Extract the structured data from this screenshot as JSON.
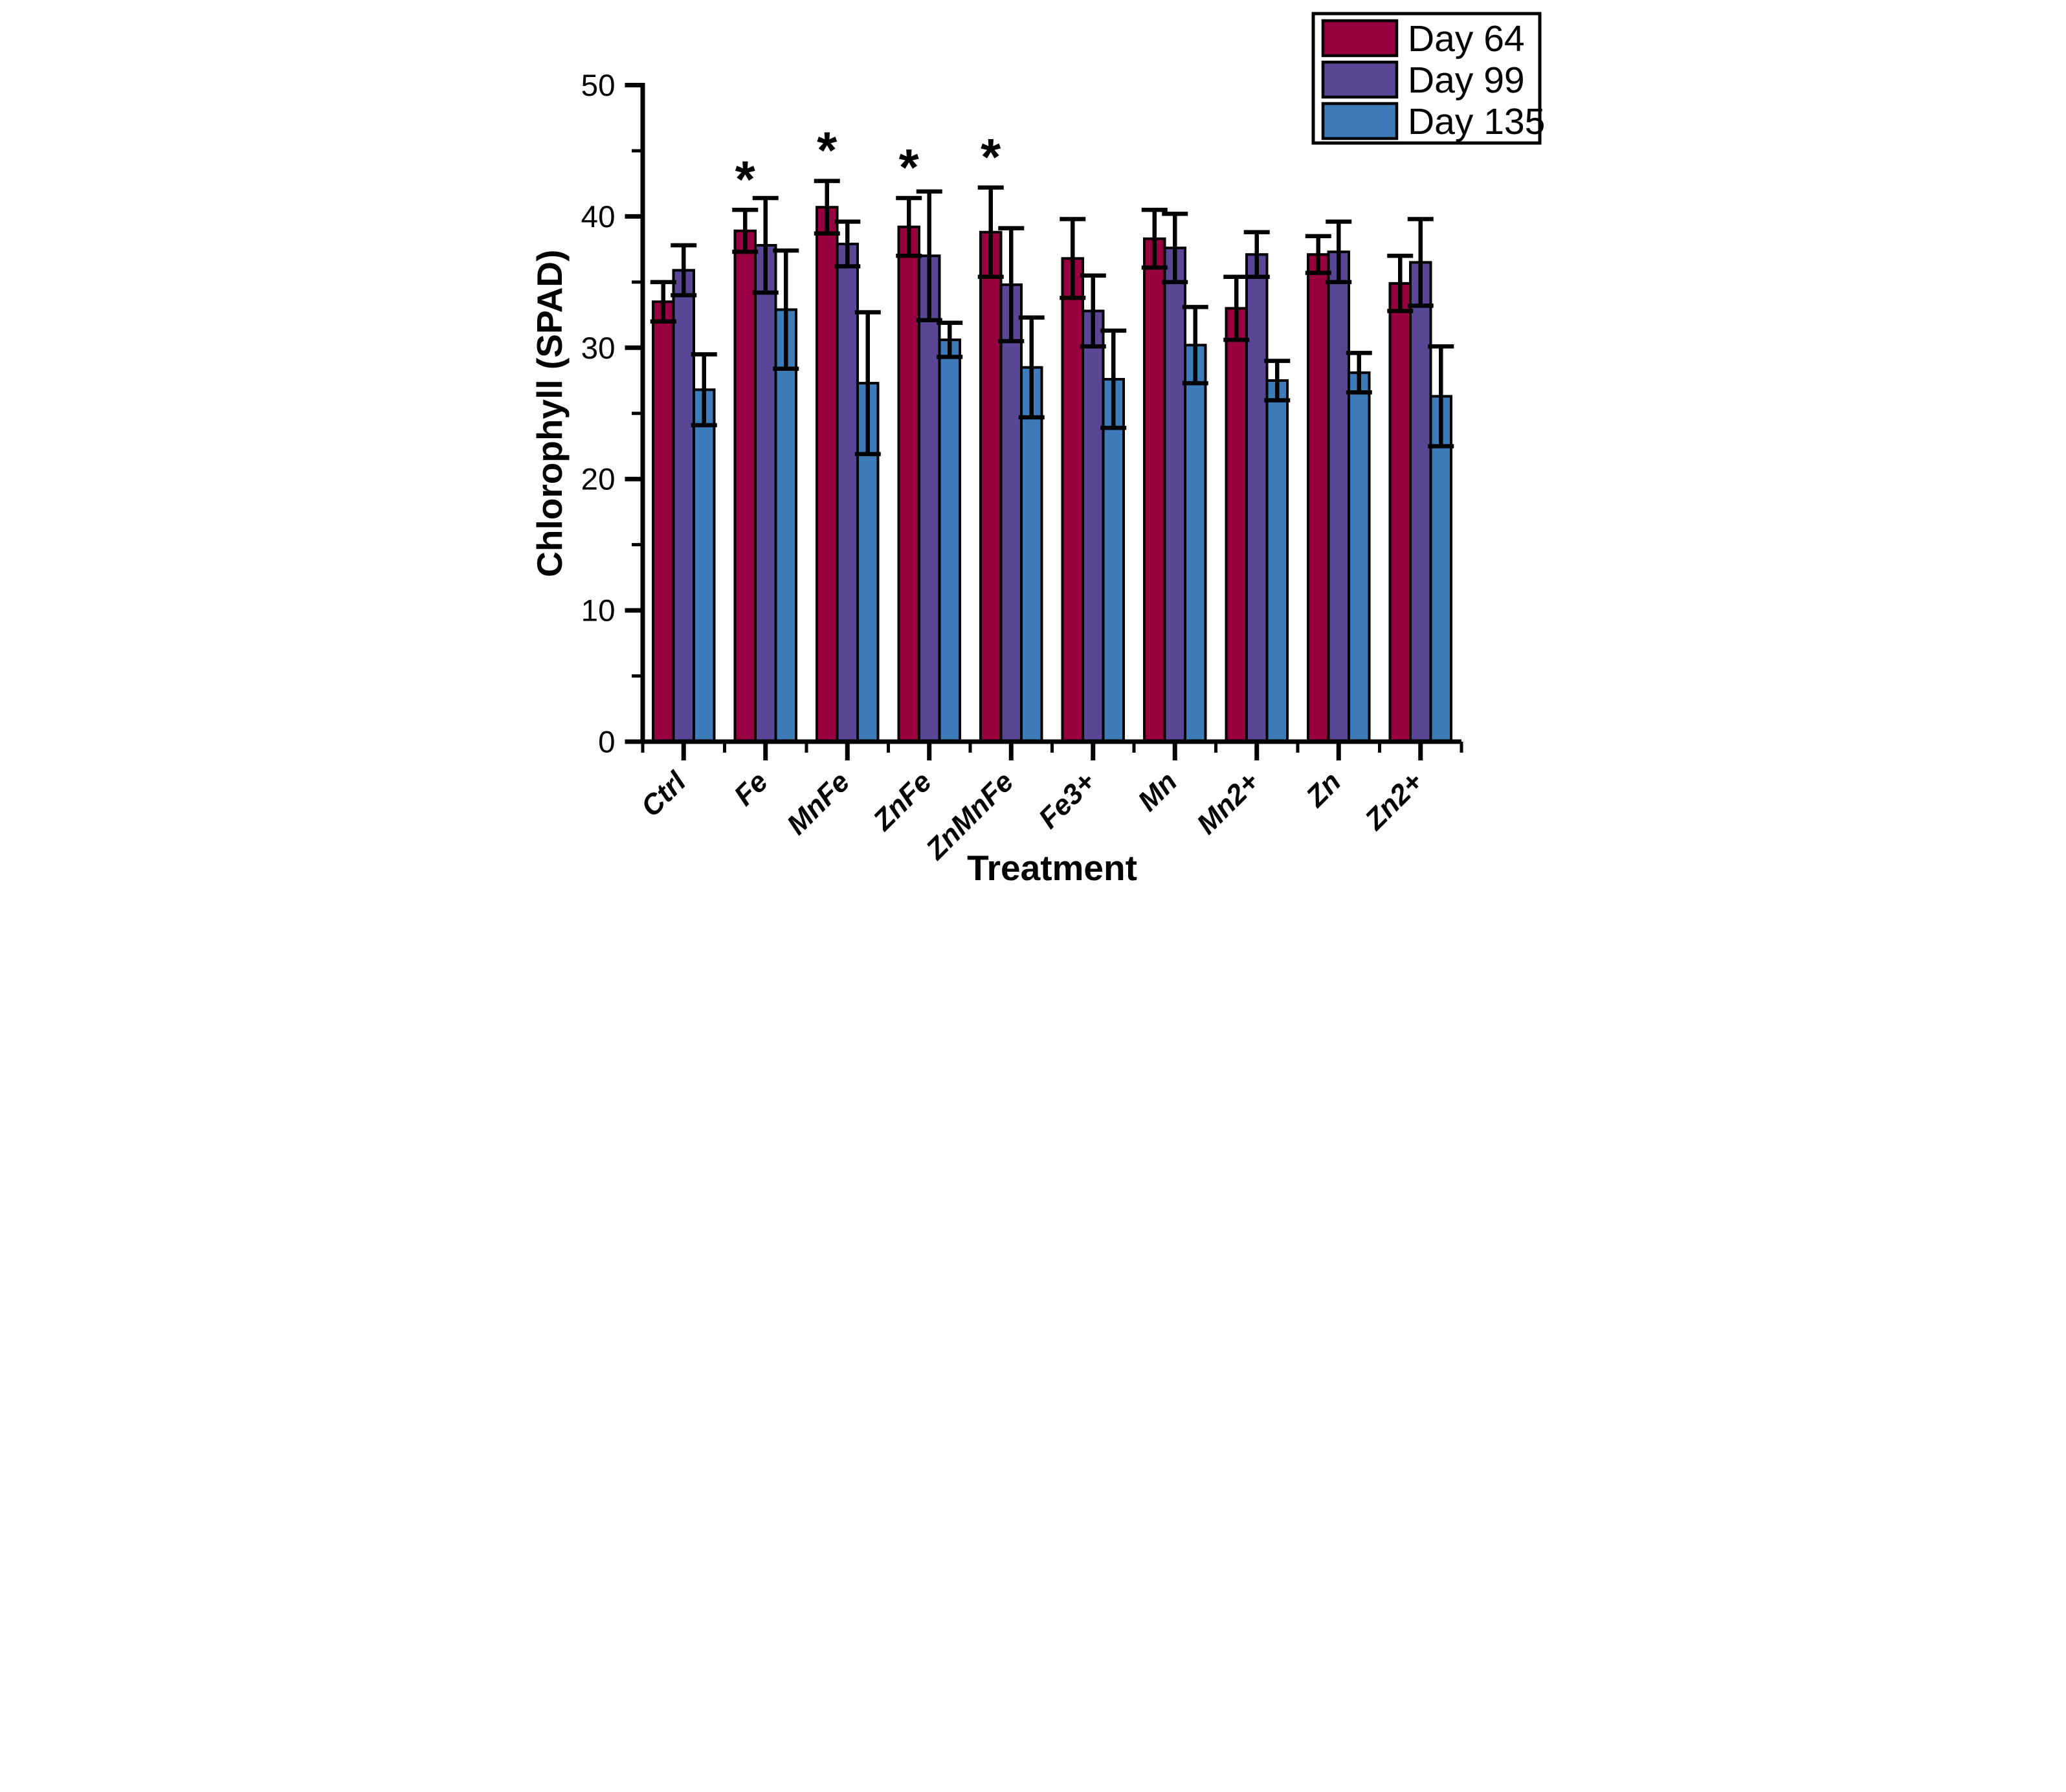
{
  "chart_data": {
    "type": "bar",
    "title": "",
    "xlabel": "Treatment",
    "ylabel": "Chlorophyll (SPAD)",
    "ylim": [
      0,
      50
    ],
    "yticks_major": [
      0,
      10,
      20,
      30,
      40,
      50
    ],
    "yticks_minor": [
      5,
      15,
      25,
      35,
      45
    ],
    "grid": false,
    "legend_position": "top-right",
    "categories": [
      "Ctrl",
      "Fe",
      "MnFe",
      "ZnFe",
      "ZnMnFe",
      "Fe3+",
      "Mn",
      "Mn2+",
      "Zn",
      "Zn2+"
    ],
    "series": [
      {
        "name": "Day 64",
        "color": "#990040",
        "values": [
          33.5,
          38.9,
          40.7,
          39.2,
          38.8,
          36.8,
          38.3,
          33.0,
          37.1,
          34.9
        ],
        "errors": [
          1.5,
          1.6,
          2.0,
          2.2,
          3.4,
          3.0,
          2.2,
          2.4,
          1.4,
          2.1
        ]
      },
      {
        "name": "Day 99",
        "color": "#594796",
        "values": [
          35.9,
          37.8,
          37.9,
          37.0,
          34.8,
          32.8,
          37.6,
          37.1,
          37.3,
          36.5
        ],
        "errors": [
          1.9,
          3.6,
          1.7,
          4.9,
          4.3,
          2.7,
          2.6,
          1.7,
          2.3,
          3.3
        ]
      },
      {
        "name": "Day 135",
        "color": "#3D7CB8",
        "values": [
          26.8,
          32.9,
          27.3,
          30.6,
          28.5,
          27.6,
          30.2,
          27.5,
          28.1,
          26.3
        ],
        "errors": [
          2.7,
          4.5,
          5.4,
          1.3,
          3.8,
          3.7,
          2.9,
          1.5,
          1.5,
          3.8
        ]
      }
    ],
    "significance": {
      "symbol": "*",
      "series": "Day 64",
      "categories": [
        "Fe",
        "MnFe",
        "ZnFe",
        "ZnMnFe"
      ]
    },
    "axis_color": "#000000",
    "background_color": "#ffffff"
  }
}
